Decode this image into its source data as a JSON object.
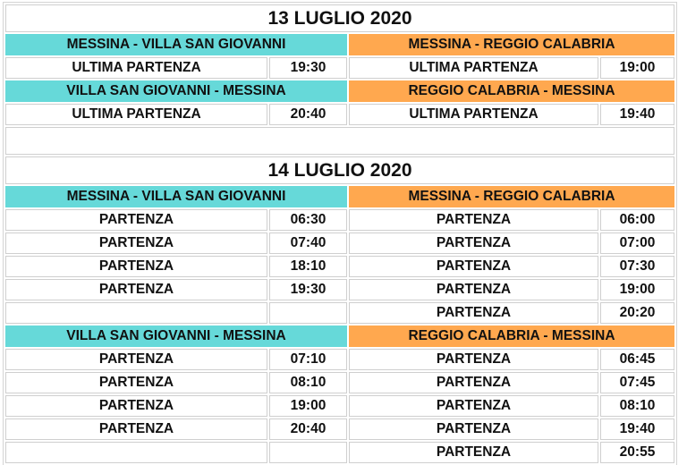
{
  "colors": {
    "left_header": "#66d9d9",
    "right_header": "#ffa84f"
  },
  "days": [
    {
      "title": "13 LUGLIO 2020",
      "blocks": [
        {
          "left": {
            "route": "MESSINA - VILLA SAN GIOVANNI",
            "rows": [
              {
                "label": "ULTIMA PARTENZA",
                "time": "19:30"
              }
            ]
          },
          "right": {
            "route": "MESSINA - REGGIO CALABRIA",
            "rows": [
              {
                "label": "ULTIMA PARTENZA",
                "time": "19:00"
              }
            ]
          }
        },
        {
          "left": {
            "route": "VILLA SAN GIOVANNI - MESSINA",
            "rows": [
              {
                "label": "ULTIMA PARTENZA",
                "time": "20:40"
              }
            ]
          },
          "right": {
            "route": "REGGIO CALABRIA - MESSINA",
            "rows": [
              {
                "label": "ULTIMA PARTENZA",
                "time": "19:40"
              }
            ]
          }
        }
      ]
    },
    {
      "title": "14 LUGLIO 2020",
      "blocks": [
        {
          "left": {
            "route": "MESSINA - VILLA SAN GIOVANNI",
            "rows": [
              {
                "label": "PARTENZA",
                "time": "06:30"
              },
              {
                "label": "PARTENZA",
                "time": "07:40"
              },
              {
                "label": "PARTENZA",
                "time": "18:10"
              },
              {
                "label": "PARTENZA",
                "time": "19:30"
              },
              {
                "label": "",
                "time": ""
              }
            ]
          },
          "right": {
            "route": "MESSINA - REGGIO CALABRIA",
            "rows": [
              {
                "label": "PARTENZA",
                "time": "06:00"
              },
              {
                "label": "PARTENZA",
                "time": "07:00"
              },
              {
                "label": "PARTENZA",
                "time": "07:30"
              },
              {
                "label": "PARTENZA",
                "time": "19:00"
              },
              {
                "label": "PARTENZA",
                "time": "20:20"
              }
            ]
          }
        },
        {
          "left": {
            "route": "VILLA SAN GIOVANNI - MESSINA",
            "rows": [
              {
                "label": "PARTENZA",
                "time": "07:10"
              },
              {
                "label": "PARTENZA",
                "time": "08:10"
              },
              {
                "label": "PARTENZA",
                "time": "19:00"
              },
              {
                "label": "PARTENZA",
                "time": "20:40"
              },
              {
                "label": "",
                "time": ""
              }
            ]
          },
          "right": {
            "route": "REGGIO CALABRIA - MESSINA",
            "rows": [
              {
                "label": "PARTENZA",
                "time": "06:45"
              },
              {
                "label": "PARTENZA",
                "time": "07:45"
              },
              {
                "label": "PARTENZA",
                "time": "08:10"
              },
              {
                "label": "PARTENZA",
                "time": "19:40"
              },
              {
                "label": "PARTENZA",
                "time": "20:55"
              }
            ]
          }
        }
      ]
    }
  ]
}
